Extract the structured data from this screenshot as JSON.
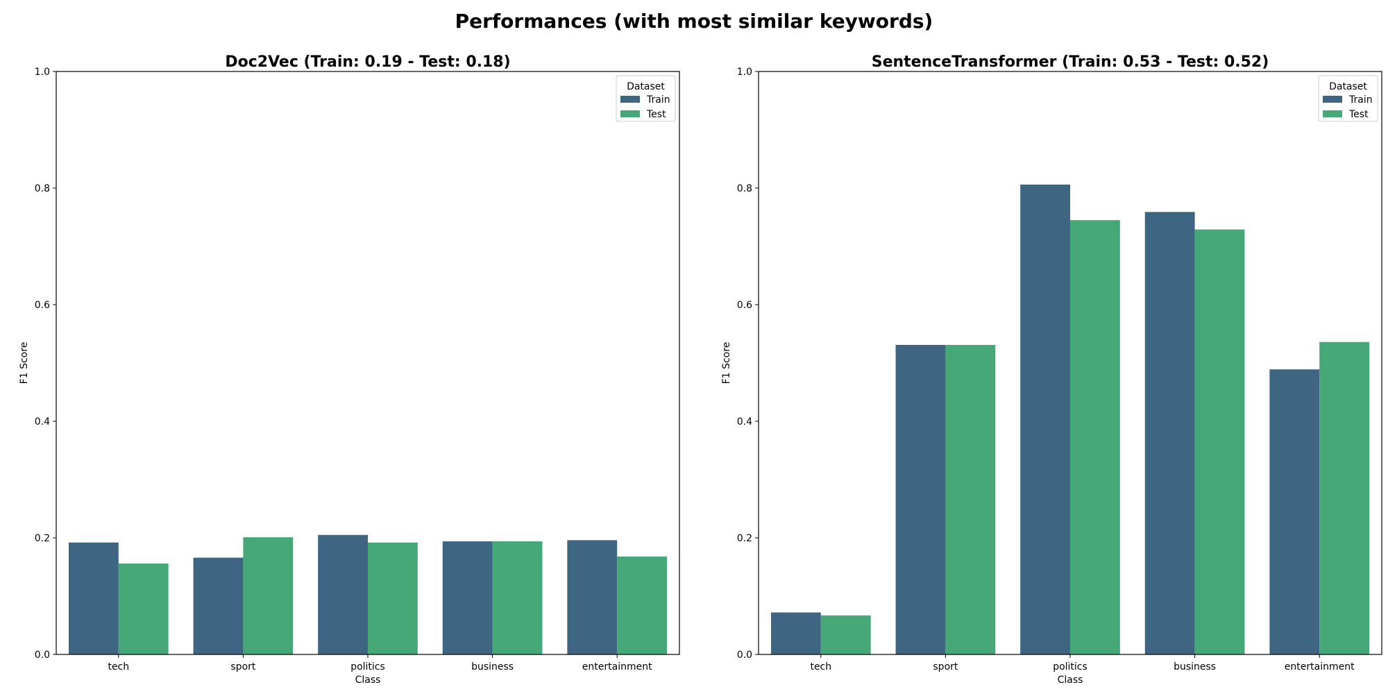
{
  "figure": {
    "suptitle": "Performances (with most similar keywords)",
    "colors": {
      "train": "#3e6582",
      "test": "#46a777"
    }
  },
  "chart_data": [
    {
      "type": "bar",
      "title": "Doc2Vec (Train: 0.19 - Test: 0.18)",
      "xlabel": "Class",
      "ylabel": "F1 Score",
      "ylim": [
        0,
        1.0
      ],
      "yticks": [
        "0.0",
        "0.2",
        "0.4",
        "0.6",
        "0.8",
        "1.0"
      ],
      "categories": [
        "tech",
        "sport",
        "politics",
        "business",
        "entertainment"
      ],
      "legend": {
        "title": "Dataset",
        "placement": "top-right"
      },
      "series": [
        {
          "name": "Train",
          "values": [
            0.192,
            0.166,
            0.205,
            0.194,
            0.196
          ]
        },
        {
          "name": "Test",
          "values": [
            0.156,
            0.201,
            0.192,
            0.194,
            0.168
          ]
        }
      ]
    },
    {
      "type": "bar",
      "title": "SentenceTransformer (Train: 0.53 - Test: 0.52)",
      "xlabel": "Class",
      "ylabel": "F1 Score",
      "ylim": [
        0,
        1.0
      ],
      "yticks": [
        "0.0",
        "0.2",
        "0.4",
        "0.6",
        "0.8",
        "1.0"
      ],
      "categories": [
        "tech",
        "sport",
        "politics",
        "business",
        "entertainment"
      ],
      "legend": {
        "title": "Dataset",
        "placement": "top-right"
      },
      "series": [
        {
          "name": "Train",
          "values": [
            0.072,
            0.531,
            0.806,
            0.759,
            0.489
          ]
        },
        {
          "name": "Test",
          "values": [
            0.067,
            0.531,
            0.745,
            0.729,
            0.536
          ]
        }
      ]
    }
  ]
}
